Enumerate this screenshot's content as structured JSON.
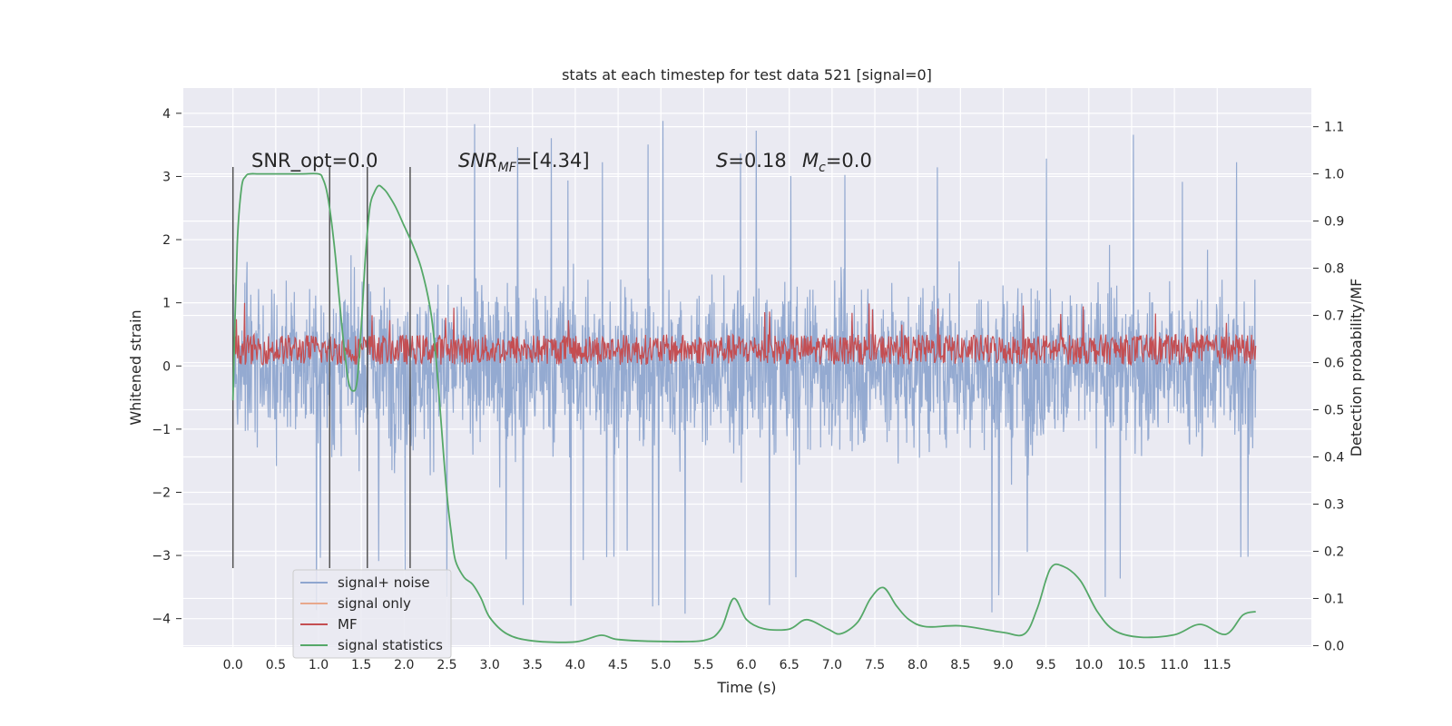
{
  "chart_data": {
    "type": "line",
    "title": "stats at each timestep for test data 521 [signal=0]",
    "xlabel": "Time (s)",
    "ylabel": "Whitened strain",
    "y2label": "Detection probability/MF",
    "xlim": [
      -0.58,
      12.6
    ],
    "ylim": [
      -4.45,
      4.4
    ],
    "y2lim": [
      -0.003,
      1.182
    ],
    "xticks": [
      "0.0",
      "0.5",
      "1.0",
      "1.5",
      "2.0",
      "2.5",
      "3.0",
      "3.5",
      "4.0",
      "4.5",
      "5.0",
      "5.5",
      "6.0",
      "6.5",
      "7.0",
      "7.5",
      "8.0",
      "8.5",
      "9.0",
      "9.5",
      "10.0",
      "10.5",
      "11.0",
      "11.5"
    ],
    "yticks": [
      "4",
      "3",
      "2",
      "1",
      "0",
      "−1",
      "−2",
      "−3",
      "−4"
    ],
    "y2ticks": [
      "1.1",
      "1.0",
      "0.9",
      "0.8",
      "0.7",
      "0.6",
      "0.5",
      "0.4",
      "0.3",
      "0.2",
      "0.1",
      "0.0"
    ],
    "annotations": {
      "snr_opt": "SNR_opt=0.0",
      "snr_mf_main": "SNR",
      "snr_mf_sub": "MF",
      "snr_mf_value": "=[4.34]",
      "s_label": "S",
      "s_value": "=0.18",
      "mc_label": "M",
      "mc_sub": "c",
      "mc_value": "=0.0"
    },
    "vlines_x": [
      0.0,
      1.13,
      1.57,
      2.07
    ],
    "vlines_ylim": [
      -3.2,
      3.15
    ],
    "noise_envelope": {
      "x_range": [
        0.0,
        11.95
      ],
      "typical_upper": 2.2,
      "typical_lower": -2.3,
      "peak_high": 4.0,
      "peak_low": -4.1
    },
    "mf_band": {
      "x_range": [
        0.0,
        11.95
      ],
      "base": 0.02,
      "typical_top": 0.5,
      "peak": 1.0
    },
    "series": [
      {
        "name": "signal+ noise",
        "color": "#8fa6cf"
      },
      {
        "name": "signal only",
        "color": "#e8a88c"
      },
      {
        "name": "MF",
        "color": "#c44e52"
      },
      {
        "name": "signal statistics",
        "color": "#55a868",
        "axis": "right",
        "x": [
          0.0,
          0.05,
          0.1,
          0.15,
          0.2,
          0.3,
          0.5,
          0.8,
          1.0,
          1.05,
          1.1,
          1.15,
          1.2,
          1.25,
          1.3,
          1.35,
          1.4,
          1.45,
          1.5,
          1.55,
          1.6,
          1.65,
          1.7,
          1.75,
          1.8,
          1.9,
          2.0,
          2.1,
          2.2,
          2.3,
          2.35,
          2.4,
          2.45,
          2.5,
          2.55,
          2.6,
          2.7,
          2.8,
          2.9,
          3.0,
          3.2,
          3.5,
          4.0,
          4.3,
          4.5,
          5.0,
          5.5,
          5.7,
          5.85,
          6.0,
          6.2,
          6.5,
          6.7,
          6.95,
          7.1,
          7.3,
          7.45,
          7.6,
          7.75,
          7.9,
          8.1,
          8.5,
          9.0,
          9.25,
          9.4,
          9.55,
          9.7,
          9.9,
          10.1,
          10.3,
          10.6,
          11.0,
          11.3,
          11.6,
          11.8,
          11.95
        ],
        "y": [
          0.52,
          0.85,
          0.97,
          0.995,
          1.0,
          1.0,
          1.0,
          1.0,
          1.0,
          0.99,
          0.96,
          0.9,
          0.82,
          0.72,
          0.63,
          0.56,
          0.54,
          0.56,
          0.68,
          0.83,
          0.93,
          0.96,
          0.975,
          0.97,
          0.96,
          0.93,
          0.89,
          0.85,
          0.8,
          0.72,
          0.65,
          0.55,
          0.43,
          0.32,
          0.24,
          0.18,
          0.145,
          0.13,
          0.1,
          0.06,
          0.025,
          0.01,
          0.008,
          0.022,
          0.013,
          0.009,
          0.011,
          0.035,
          0.1,
          0.055,
          0.036,
          0.035,
          0.055,
          0.035,
          0.025,
          0.05,
          0.1,
          0.123,
          0.085,
          0.055,
          0.04,
          0.042,
          0.028,
          0.025,
          0.08,
          0.163,
          0.168,
          0.138,
          0.072,
          0.032,
          0.018,
          0.023,
          0.045,
          0.024,
          0.065,
          0.072
        ]
      }
    ],
    "legend_position": "lower left",
    "grid": true
  }
}
